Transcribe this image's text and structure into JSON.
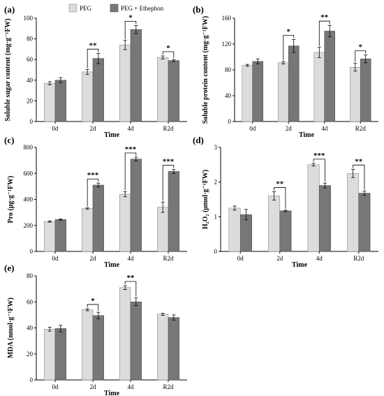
{
  "legend": [
    {
      "name": "PEG",
      "color": "#dcdcdc"
    },
    {
      "name": "PEG + Ethephon",
      "color": "#777777"
    }
  ],
  "chart_data": [
    {
      "type": "bar",
      "panel_label": "(a)",
      "xlabel": "Time",
      "ylabel": "Soluble sugar content (mg·g⁻¹FW)",
      "categories": [
        "0d",
        "2d",
        "4d",
        "R2d"
      ],
      "ylim": [
        0,
        100
      ],
      "yticks": [
        0,
        20,
        40,
        60,
        80,
        100
      ],
      "series": [
        {
          "name": "PEG",
          "values": [
            37,
            48,
            74,
            62
          ],
          "errors": [
            1.5,
            2.5,
            4.5,
            1.5
          ]
        },
        {
          "name": "PEG + Ethephon",
          "values": [
            40,
            61,
            89,
            59
          ],
          "errors": [
            2.5,
            5,
            4,
            1
          ]
        }
      ],
      "significance": [
        "",
        "**",
        "*",
        "*"
      ],
      "grid": false
    },
    {
      "type": "bar",
      "panel_label": "(b)",
      "xlabel": "Time",
      "ylabel": "Soluble protein content (mg·g⁻¹FW)",
      "categories": [
        "0d",
        "2d",
        "4d",
        "R2d"
      ],
      "ylim": [
        0,
        160
      ],
      "yticks": [
        0,
        40,
        80,
        120,
        160
      ],
      "series": [
        {
          "name": "PEG",
          "values": [
            87,
            91,
            107,
            84
          ],
          "errors": [
            1.5,
            2,
            8,
            6
          ]
        },
        {
          "name": "PEG + Ethephon",
          "values": [
            93,
            117,
            140,
            97
          ],
          "errors": [
            4,
            10,
            9,
            6
          ]
        }
      ],
      "significance": [
        "",
        "*",
        "**",
        "*"
      ],
      "grid": false
    },
    {
      "type": "bar",
      "panel_label": "(c)",
      "xlabel": "Time",
      "ylabel": "Pro (μg·g⁻¹FW)",
      "categories": [
        "0d",
        "2d",
        "4d",
        "R2d"
      ],
      "ylim": [
        0,
        800
      ],
      "yticks": [
        0,
        200,
        400,
        600,
        800
      ],
      "series": [
        {
          "name": "PEG",
          "values": [
            230,
            330,
            440,
            340
          ],
          "errors": [
            5,
            5,
            20,
            40
          ]
        },
        {
          "name": "PEG + Ethephon",
          "values": [
            245,
            510,
            710,
            615
          ],
          "errors": [
            5,
            15,
            15,
            15
          ]
        }
      ],
      "significance": [
        "",
        "***",
        "***",
        "***"
      ],
      "grid": false
    },
    {
      "type": "bar",
      "panel_label": "(d)",
      "xlabel": "Time",
      "ylabel": "H₂O₂ (μmol·g⁻¹FW)",
      "categories": [
        "0d",
        "2d",
        "4d",
        "R2d"
      ],
      "ylim": [
        0,
        3
      ],
      "yticks": [
        0,
        1,
        2,
        3
      ],
      "series": [
        {
          "name": "PEG",
          "values": [
            1.25,
            1.6,
            2.5,
            2.25
          ],
          "errors": [
            0.06,
            0.12,
            0.04,
            0.12
          ]
        },
        {
          "name": "PEG + Ethephon",
          "values": [
            1.06,
            1.17,
            1.9,
            1.68
          ],
          "errors": [
            0.15,
            0.02,
            0.07,
            0.06
          ]
        }
      ],
      "significance": [
        "",
        "**",
        "***",
        "**"
      ],
      "grid": false
    },
    {
      "type": "bar",
      "panel_label": "(e)",
      "xlabel": "Time",
      "ylabel": "MDA (nmol·g⁻¹FW)",
      "categories": [
        "0d",
        "2d",
        "4d",
        "R2d"
      ],
      "ylim": [
        0,
        80
      ],
      "yticks": [
        0,
        20,
        40,
        60,
        80
      ],
      "series": [
        {
          "name": "PEG",
          "values": [
            39,
            54,
            71,
            50.5
          ],
          "errors": [
            1.5,
            0.8,
            1.5,
            0.8
          ]
        },
        {
          "name": "PEG + Ethephon",
          "values": [
            39.5,
            49.5,
            60,
            48
          ],
          "errors": [
            2.5,
            2.5,
            3,
            2
          ]
        }
      ],
      "significance": [
        "",
        "*",
        "**",
        ""
      ],
      "grid": false
    }
  ]
}
